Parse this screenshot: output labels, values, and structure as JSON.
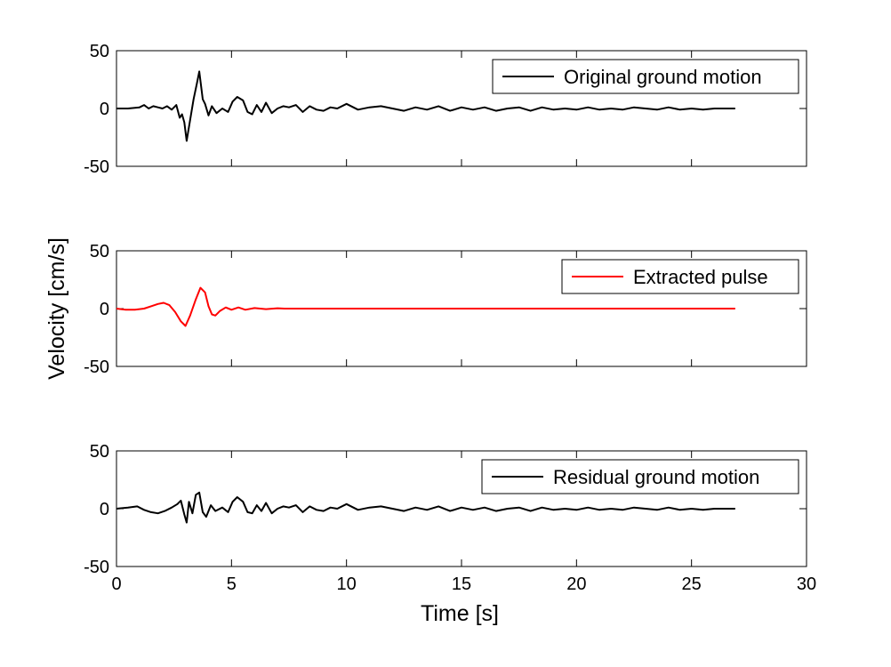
{
  "figure": {
    "ylabel": "Velocity [cm/s]",
    "xlabel": "Time [s]"
  },
  "chart_data": [
    {
      "type": "line",
      "xlim": [
        0,
        30
      ],
      "ylim": [
        -50,
        50
      ],
      "xticks": [
        0,
        5,
        10,
        15,
        20,
        25,
        30
      ],
      "yticks": [
        -50,
        0,
        50
      ],
      "show_xtick_labels": false,
      "grid": false,
      "legend_position": "top-right",
      "series": [
        {
          "name": "Original ground motion",
          "color": "#000000",
          "x": [
            0,
            0.5,
            1.0,
            1.2,
            1.4,
            1.6,
            1.8,
            2.0,
            2.2,
            2.4,
            2.6,
            2.75,
            2.85,
            2.95,
            3.05,
            3.2,
            3.35,
            3.5,
            3.6,
            3.75,
            3.85,
            4.0,
            4.15,
            4.35,
            4.6,
            4.85,
            5.05,
            5.25,
            5.5,
            5.7,
            5.9,
            6.1,
            6.3,
            6.5,
            6.75,
            7.0,
            7.25,
            7.5,
            7.8,
            8.1,
            8.4,
            8.7,
            9.0,
            9.3,
            9.6,
            10.0,
            10.5,
            11.0,
            11.5,
            12.0,
            12.5,
            13.0,
            13.5,
            14.0,
            14.5,
            15.0,
            15.5,
            16.0,
            16.5,
            17.0,
            17.5,
            18.0,
            18.5,
            19.0,
            19.5,
            20.0,
            20.5,
            21.0,
            21.5,
            22.0,
            22.5,
            23.0,
            23.5,
            24.0,
            24.5,
            25.0,
            25.5,
            26.0,
            26.5,
            26.9
          ],
          "y": [
            0,
            0,
            1,
            3,
            0,
            2,
            1,
            0,
            2,
            -1,
            3,
            -8,
            -5,
            -12,
            -28,
            -10,
            8,
            22,
            32,
            8,
            4,
            -6,
            2,
            -4,
            0,
            -3,
            6,
            10,
            7,
            -3,
            -5,
            3,
            -3,
            5,
            -4,
            0,
            2,
            1,
            3,
            -3,
            2,
            -1,
            -2,
            1,
            0,
            4,
            -1,
            1,
            2,
            0,
            -2,
            1,
            -1,
            2,
            -2,
            1,
            -1,
            1,
            -2,
            0,
            1,
            -2,
            1,
            -1,
            0,
            -1,
            1,
            -1,
            0,
            -1,
            1,
            0,
            -1,
            1,
            -1,
            0,
            -1,
            0,
            0,
            0
          ]
        }
      ]
    },
    {
      "type": "line",
      "xlim": [
        0,
        30
      ],
      "ylim": [
        -50,
        50
      ],
      "xticks": [
        0,
        5,
        10,
        15,
        20,
        25,
        30
      ],
      "yticks": [
        -50,
        0,
        50
      ],
      "show_xtick_labels": false,
      "grid": false,
      "legend_position": "top-right",
      "series": [
        {
          "name": "Extracted pulse",
          "color": "#ff0000",
          "x": [
            0,
            0.4,
            0.8,
            1.2,
            1.5,
            1.8,
            2.05,
            2.3,
            2.55,
            2.8,
            3.0,
            3.2,
            3.45,
            3.65,
            3.85,
            4.0,
            4.15,
            4.3,
            4.5,
            4.75,
            5.0,
            5.3,
            5.6,
            6.0,
            6.5,
            7.0,
            7.3,
            8.0,
            10.0,
            15.0,
            20.0,
            25.0,
            26.9
          ],
          "y": [
            0,
            -1,
            -1,
            0,
            2,
            4,
            5,
            3,
            -3,
            -11,
            -15,
            -6,
            8,
            18,
            14,
            2,
            -5,
            -6,
            -2,
            1,
            -1,
            1,
            -1,
            0.5,
            -0.5,
            0.3,
            0,
            0,
            0,
            0,
            0,
            0,
            0
          ]
        }
      ]
    },
    {
      "type": "line",
      "xlim": [
        0,
        30
      ],
      "ylim": [
        -50,
        50
      ],
      "xticks": [
        0,
        5,
        10,
        15,
        20,
        25,
        30
      ],
      "yticks": [
        -50,
        0,
        50
      ],
      "show_xtick_labels": true,
      "grid": false,
      "legend_position": "top-right",
      "series": [
        {
          "name": "Residual ground motion",
          "color": "#000000",
          "x": [
            0,
            0.5,
            0.9,
            1.2,
            1.5,
            1.8,
            2.1,
            2.4,
            2.65,
            2.8,
            2.95,
            3.05,
            3.15,
            3.3,
            3.45,
            3.6,
            3.75,
            3.9,
            4.1,
            4.3,
            4.6,
            4.85,
            5.05,
            5.25,
            5.5,
            5.7,
            5.9,
            6.1,
            6.3,
            6.5,
            6.75,
            7.0,
            7.25,
            7.5,
            7.8,
            8.1,
            8.4,
            8.7,
            9.0,
            9.3,
            9.6,
            10.0,
            10.5,
            11.0,
            11.5,
            12.0,
            12.5,
            13.0,
            13.5,
            14.0,
            14.5,
            15.0,
            15.5,
            16.0,
            16.5,
            17.0,
            17.5,
            18.0,
            18.5,
            19.0,
            19.5,
            20.0,
            20.5,
            21.0,
            21.5,
            22.0,
            22.5,
            23.0,
            23.5,
            24.0,
            24.5,
            25.0,
            25.5,
            26.0,
            26.5,
            26.9
          ],
          "y": [
            0,
            1,
            2,
            -1,
            -3,
            -4,
            -2,
            1,
            4,
            7,
            -5,
            -12,
            6,
            -4,
            12,
            14,
            -3,
            -7,
            3,
            -2,
            1,
            -3,
            6,
            10,
            6,
            -3,
            -4,
            3,
            -2,
            5,
            -4,
            0,
            2,
            1,
            3,
            -3,
            2,
            -1,
            -2,
            1,
            0,
            4,
            -1,
            1,
            2,
            0,
            -2,
            1,
            -1,
            2,
            -2,
            1,
            -1,
            1,
            -2,
            0,
            1,
            -2,
            1,
            -1,
            0,
            -1,
            1,
            -1,
            0,
            -1,
            1,
            0,
            -1,
            1,
            -1,
            0,
            -1,
            0,
            0,
            0
          ]
        }
      ]
    }
  ]
}
